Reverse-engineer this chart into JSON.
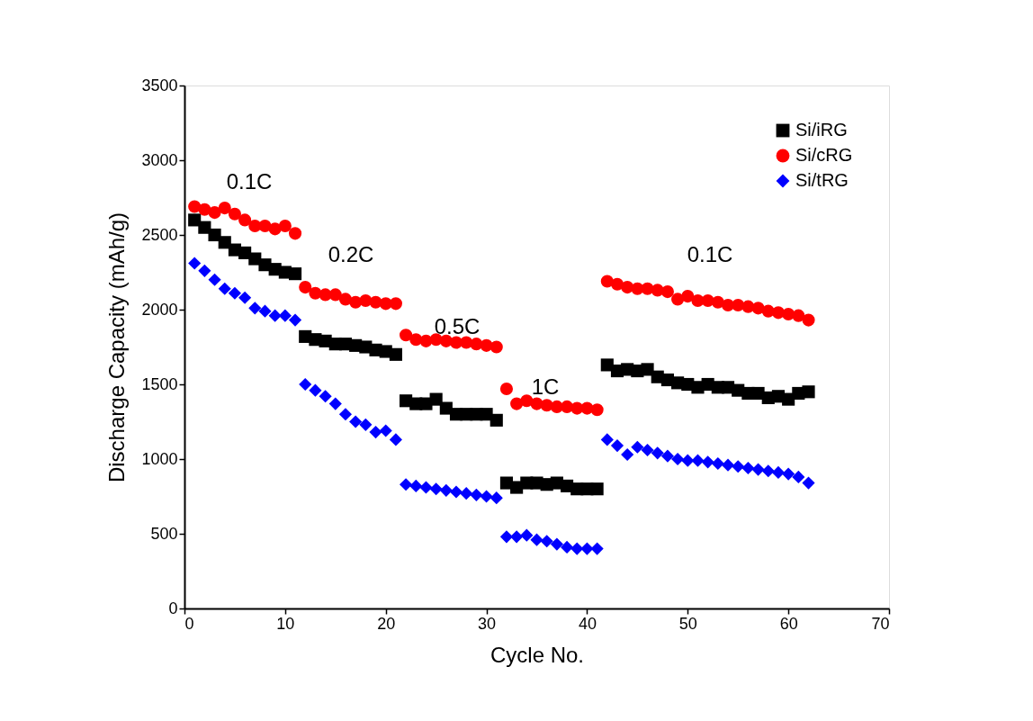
{
  "chart_data": {
    "type": "scatter",
    "xlabel": "Cycle No.",
    "ylabel": "Discharge Capacity (mAh/g)",
    "x": [
      1,
      2,
      3,
      4,
      5,
      6,
      7,
      8,
      9,
      10,
      11,
      12,
      13,
      14,
      15,
      16,
      17,
      18,
      19,
      20,
      21,
      22,
      23,
      24,
      25,
      26,
      27,
      28,
      29,
      30,
      31,
      32,
      33,
      34,
      35,
      36,
      37,
      38,
      39,
      40,
      41,
      42,
      43,
      44,
      45,
      46,
      47,
      48,
      49,
      50,
      51,
      52,
      53,
      54,
      55,
      56,
      57,
      58,
      59,
      60,
      61,
      62
    ],
    "series": [
      {
        "name": "Si/iRG",
        "color": "#000000",
        "marker": "square",
        "values": [
          2600,
          2550,
          2500,
          2450,
          2400,
          2380,
          2340,
          2300,
          2270,
          2250,
          2240,
          1820,
          1800,
          1790,
          1770,
          1770,
          1760,
          1750,
          1730,
          1720,
          1700,
          1390,
          1370,
          1370,
          1400,
          1340,
          1300,
          1300,
          1300,
          1300,
          1260,
          840,
          810,
          840,
          840,
          830,
          840,
          820,
          800,
          800,
          800,
          1630,
          1590,
          1600,
          1590,
          1600,
          1550,
          1530,
          1510,
          1500,
          1480,
          1500,
          1480,
          1480,
          1460,
          1440,
          1440,
          1410,
          1420,
          1400,
          1440,
          1450
        ]
      },
      {
        "name": "Si/cRG",
        "color": "#ff0000",
        "marker": "circle",
        "values": [
          2690,
          2670,
          2650,
          2680,
          2640,
          2600,
          2560,
          2560,
          2540,
          2560,
          2510,
          2150,
          2110,
          2100,
          2100,
          2070,
          2050,
          2060,
          2050,
          2040,
          2040,
          1830,
          1800,
          1790,
          1800,
          1790,
          1780,
          1780,
          1770,
          1760,
          1750,
          1470,
          1370,
          1390,
          1370,
          1360,
          1350,
          1350,
          1340,
          1340,
          1330,
          2190,
          2170,
          2150,
          2140,
          2140,
          2130,
          2120,
          2070,
          2090,
          2060,
          2060,
          2050,
          2030,
          2030,
          2020,
          2010,
          1990,
          1980,
          1970,
          1960,
          1930
        ]
      },
      {
        "name": "Si/tRG",
        "color": "#0000ff",
        "marker": "diamond",
        "values": [
          2310,
          2260,
          2200,
          2140,
          2110,
          2080,
          2010,
          1990,
          1960,
          1960,
          1930,
          1500,
          1460,
          1420,
          1370,
          1300,
          1250,
          1230,
          1180,
          1190,
          1130,
          830,
          820,
          810,
          800,
          790,
          780,
          770,
          760,
          750,
          740,
          480,
          480,
          490,
          460,
          450,
          430,
          410,
          400,
          400,
          400,
          1130,
          1090,
          1030,
          1080,
          1060,
          1040,
          1020,
          1000,
          990,
          990,
          980,
          970,
          960,
          950,
          940,
          930,
          920,
          910,
          900,
          880,
          840
        ]
      }
    ],
    "xlim": [
      0,
      70
    ],
    "xticks": [
      0,
      10,
      20,
      30,
      40,
      50,
      60,
      70
    ],
    "ylim": [
      0,
      3500
    ],
    "yticks": [
      0,
      500,
      1000,
      1500,
      2000,
      2500,
      3000,
      3500
    ],
    "grid": false,
    "legend": "top right",
    "annotations": [
      "0.1C",
      "0.2C",
      "0.5C",
      "1C",
      "0.1C"
    ]
  }
}
